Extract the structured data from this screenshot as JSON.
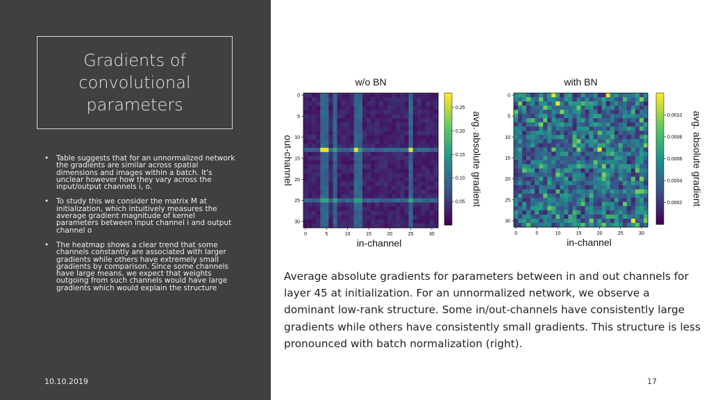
{
  "slide": {
    "title_lines": [
      "Gradients of",
      "convolutional",
      "parameters"
    ],
    "bullets": [
      "Table suggests that for an unnormalized network the gradients are similar across spatial dimensions and images within a batch. It's unclear however how they vary across the input/output channels i, o.",
      "To study this we consider the matrix M at initialization, which intuitively measures the average gradient magnitude of kernel parameters between input channel i and output channel o",
      "The heatmap shows a clear trend that some channels constantly are associated with larger gradients while others have extremely small gradients by comparison. Since some channels have large means, we expect that weights outgoing from such channels would have large gradients which would explain the structure"
    ],
    "bullet_icon": "bullet-dot",
    "date": "10.10.2019",
    "page_number": "17",
    "caption": "Average absolute gradients for parameters between in and out channels for layer 45 at initialization. For an unnormalized network, we observe a dominant low-rank structure. Some in/out-channels have consistently large gradients while others have consistently small gradients. This structure is less pronounced with batch normalization (right).",
    "colors": {
      "left_panel": "#404040",
      "title_border": "#d9d9d9",
      "colormap": "viridis"
    }
  },
  "chart_data": [
    {
      "type": "heatmap",
      "title": "w/o BN",
      "xlabel": "in-channel",
      "ylabel": "out-channel",
      "colorbar_label": "avg. absolute gradient",
      "x_ticks": [
        "0",
        "5",
        "10",
        "15",
        "20",
        "25",
        "30"
      ],
      "y_ticks": [
        "0",
        "5",
        "10",
        "15",
        "20",
        "25",
        "30"
      ],
      "colorbar_ticks": [
        "0.05",
        "0.10",
        "0.15",
        "0.20",
        "0.25"
      ],
      "value_range": [
        0,
        0.28
      ],
      "grid": false,
      "size": [
        32,
        32
      ],
      "high_columns": [
        4,
        5,
        7,
        12,
        13,
        25
      ],
      "high_rows": [
        13,
        25
      ],
      "peak_cells": [
        [
          13,
          4
        ],
        [
          13,
          5
        ],
        [
          13,
          12
        ],
        [
          13,
          25
        ]
      ]
    },
    {
      "type": "heatmap",
      "title": "with BN",
      "xlabel": "in-channel",
      "ylabel": "",
      "colorbar_label": "avg. absolute gradient",
      "x_ticks": [
        "0",
        "5",
        "10",
        "15",
        "20",
        "25",
        "30"
      ],
      "y_ticks": [
        "0",
        "5",
        "10",
        "15",
        "20",
        "25",
        "30"
      ],
      "colorbar_ticks": [
        "0.0002",
        "0.0004",
        "0.0006",
        "0.0008",
        "0.0010"
      ],
      "value_range": [
        0,
        0.0012
      ],
      "grid": false,
      "size": [
        32,
        32
      ],
      "pattern": "scattered",
      "peak_cells": [
        [
          0,
          22
        ],
        [
          0,
          9
        ],
        [
          2,
          10
        ],
        [
          30,
          28
        ],
        [
          13,
          20
        ]
      ]
    }
  ]
}
